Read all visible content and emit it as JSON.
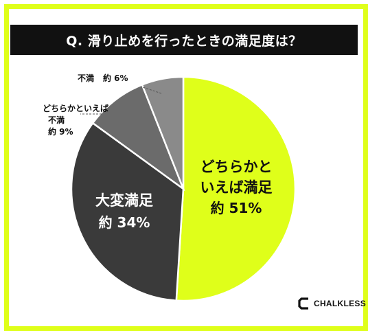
{
  "title": "Q. 滑り止めを行ったときの満足度は？",
  "brand": "CHALKLESS",
  "colors": {
    "accent": "#dfff1a",
    "title_bg": "#111111",
    "slice_1": "#dfff1a",
    "slice_2": "#3a3a3a",
    "slice_3": "#6b6b6b",
    "slice_4": "#8a8a8a"
  },
  "chart_data": {
    "type": "pie",
    "title": "Q. 滑り止めを行ったときの満足度は？",
    "start_angle_deg": 0,
    "direction": "clockwise",
    "slices": [
      {
        "label_lines": [
          "どちらかと",
          "いえば満足"
        ],
        "value_text": "約 51%",
        "value": 51,
        "color": "#dfff1a",
        "label_color": "#111111",
        "label_style": "inside"
      },
      {
        "label_lines": [
          "大変満足"
        ],
        "value_text": "約 34%",
        "value": 34,
        "color": "#3a3a3a",
        "label_color": "#ffffff",
        "label_style": "inside"
      },
      {
        "label_lines": [
          "どちらかといえば",
          "不満"
        ],
        "value_text": "約 9%",
        "value": 9,
        "color": "#6b6b6b",
        "label_color": "#111111",
        "label_style": "outside"
      },
      {
        "label_lines": [
          "不満"
        ],
        "value_text": "約 6%",
        "value": 6,
        "color": "#8a8a8a",
        "label_color": "#111111",
        "label_style": "outside"
      }
    ]
  }
}
